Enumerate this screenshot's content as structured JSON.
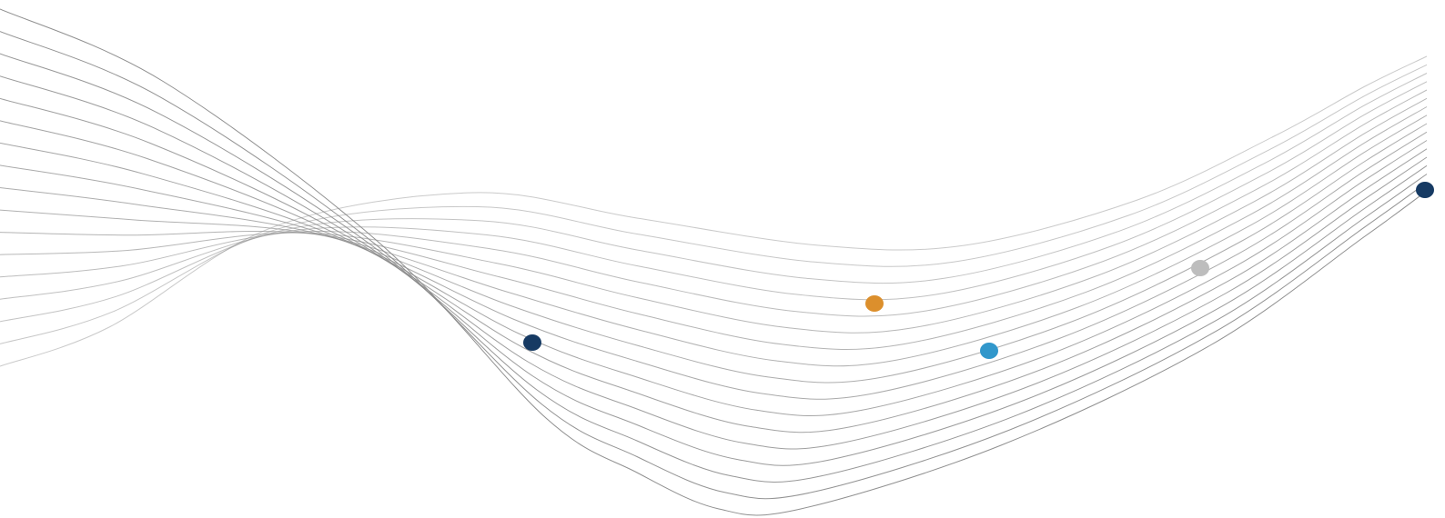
{
  "background_color": "#ffffff",
  "line_color": "#8a8a8a",
  "line_count": 17,
  "dots": [
    {
      "name": "navy-dot-1",
      "color": "#163a63"
    },
    {
      "name": "orange-dot",
      "color": "#dc8f2c"
    },
    {
      "name": "blue-dot",
      "color": "#3197cb"
    },
    {
      "name": "gray-dot",
      "color": "#bdbdbd"
    },
    {
      "name": "navy-dot-2",
      "color": "#163a63"
    }
  ]
}
